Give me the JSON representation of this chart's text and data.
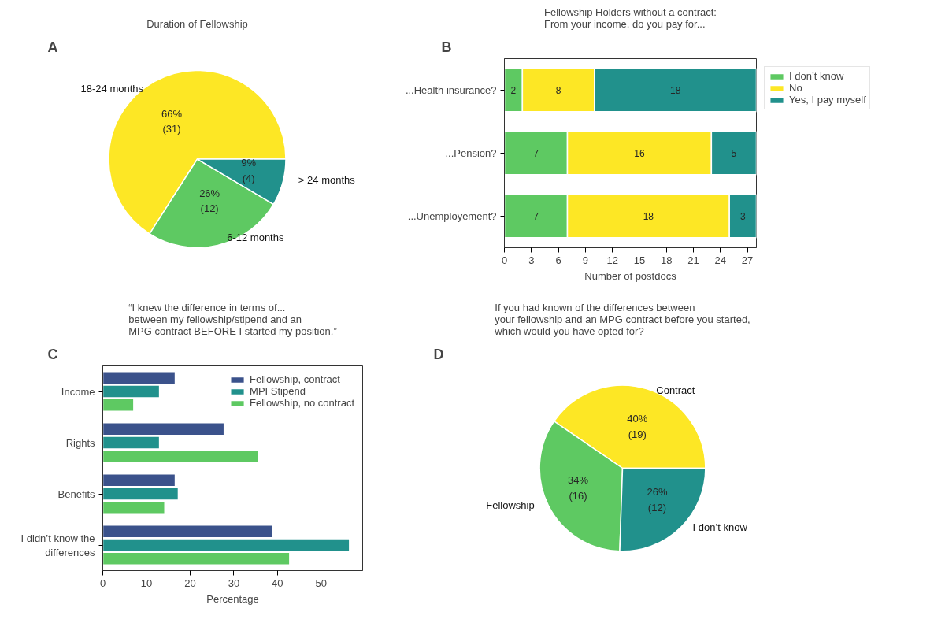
{
  "chart_data": [
    {
      "type": "pie",
      "title": "Duration of Fellowship",
      "annotations": [
        "A"
      ],
      "categories": [
        "18-24 months",
        "6-12 months",
        "> 24 months"
      ],
      "values": [
        31,
        12,
        4
      ],
      "colors": [
        "#fde725",
        "#5ec962",
        "#21918c"
      ],
      "value_labels": [
        "66%\n(31)",
        "26%\n(12)",
        "9%\n(4)"
      ],
      "legend": false
    },
    {
      "type": "bar",
      "orientation": "horizontal",
      "stacked": true,
      "title": "Fellowship Holders without a contract:\nFrom your income, do you pay for...",
      "annotations": [
        "B"
      ],
      "xlabel": "Number of postdocs",
      "categories": [
        "...Health insurance?",
        "...Pension?",
        "...Unemployement?"
      ],
      "series": [
        {
          "name": "I don’t know",
          "color": "#5ec962",
          "values": [
            2,
            7,
            7
          ]
        },
        {
          "name": "No",
          "color": "#fde725",
          "values": [
            8,
            16,
            18
          ]
        },
        {
          "name": "Yes, I pay myself",
          "color": "#21918c",
          "values": [
            18,
            5,
            3
          ]
        }
      ],
      "xlim": [
        0,
        28
      ],
      "xticks": [
        0,
        3,
        6,
        9,
        12,
        15,
        18,
        21,
        24,
        27
      ],
      "data_labels": true,
      "legend": "right",
      "grid": false
    },
    {
      "type": "bar",
      "orientation": "horizontal",
      "title": "“I knew the difference in terms of...\nbetween my fellowship/stipend and an\nMPG contract BEFORE I started my position.”",
      "annotations": [
        "C"
      ],
      "xlabel": "Percentage",
      "categories": [
        "Income",
        "Rights",
        "Benefits",
        "I didn’t know the\ndifferences"
      ],
      "series": [
        {
          "name": "Fellowship, contract",
          "color": "#3b528b",
          "values": [
            16.6,
            27.8,
            16.6,
            38.9
          ]
        },
        {
          "name": "MPI Stipend",
          "color": "#21918c",
          "values": [
            13.0,
            13.0,
            17.3,
            56.5
          ]
        },
        {
          "name": "Fellowship, no contract",
          "color": "#5ec962",
          "values": [
            7.1,
            35.7,
            14.2,
            42.8
          ]
        }
      ],
      "xlim": [
        0,
        59.5
      ],
      "xticks": [
        0,
        10,
        20,
        30,
        40,
        50
      ],
      "legend": "top right",
      "grid": false
    },
    {
      "type": "pie",
      "title": "If you had known of the differences between\nyour fellowship and an MPG contract before you started,\nwhich would you have opted for?",
      "annotations": [
        "D"
      ],
      "categories": [
        "Contract",
        "Fellowship",
        "I don’t know"
      ],
      "values": [
        19,
        16,
        12
      ],
      "colors": [
        "#fde725",
        "#5ec962",
        "#21918c"
      ],
      "value_labels": [
        "40%\n(19)",
        "34%\n(16)",
        "26%\n(12)"
      ],
      "legend": false
    }
  ]
}
